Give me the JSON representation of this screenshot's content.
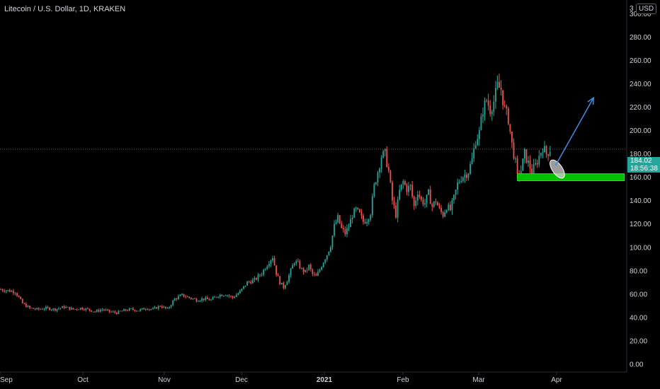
{
  "header": {
    "title": "Litecoin / U.S. Dollar, 1D, KRAKEN",
    "currency": "USD",
    "top_clip": "3"
  },
  "price_badge": {
    "price": "184.02",
    "countdown": "18:56:38"
  },
  "colors": {
    "up": "#26a69a",
    "down": "#ef5350",
    "background": "#000000",
    "zone": "#00c000",
    "arrow": "#3b8ee6"
  },
  "chart_data": {
    "type": "candlestick",
    "title": "Litecoin / U.S. Dollar, 1D, KRAKEN",
    "x_ticks": [
      "Sep",
      "Oct",
      "Nov",
      "Dec",
      "2021",
      "Feb",
      "Mar",
      "Apr"
    ],
    "y_ticks": [
      "0.00",
      "20.00",
      "40.00",
      "60.00",
      "80.00",
      "100.00",
      "120.00",
      "140.00",
      "160.00",
      "180.00",
      "200.00",
      "220.00",
      "240.00",
      "260.00",
      "280.00",
      "300.00"
    ],
    "ylim": [
      -5,
      318
    ],
    "last_price": 184.02,
    "close_series": [
      [
        0,
        64
      ],
      [
        8,
        62
      ],
      [
        12,
        52
      ],
      [
        16,
        48
      ],
      [
        20,
        47
      ],
      [
        25,
        48
      ],
      [
        30,
        47
      ],
      [
        35,
        49
      ],
      [
        40,
        47
      ],
      [
        44,
        48
      ],
      [
        48,
        47
      ],
      [
        52,
        45
      ],
      [
        56,
        47
      ],
      [
        60,
        45
      ],
      [
        64,
        44
      ],
      [
        68,
        46
      ],
      [
        72,
        47
      ],
      [
        76,
        46
      ],
      [
        80,
        48
      ],
      [
        84,
        47
      ],
      [
        88,
        50
      ],
      [
        92,
        47
      ],
      [
        96,
        56
      ],
      [
        100,
        59
      ],
      [
        104,
        57
      ],
      [
        108,
        55
      ],
      [
        112,
        56
      ],
      [
        116,
        55
      ],
      [
        120,
        59
      ],
      [
        124,
        60
      ],
      [
        128,
        57
      ],
      [
        132,
        62
      ],
      [
        136,
        70
      ],
      [
        140,
        72
      ],
      [
        144,
        78
      ],
      [
        148,
        88
      ],
      [
        150,
        92
      ],
      [
        152,
        78
      ],
      [
        154,
        70
      ],
      [
        156,
        66
      ],
      [
        158,
        72
      ],
      [
        160,
        80
      ],
      [
        162,
        88
      ],
      [
        164,
        86
      ],
      [
        166,
        81
      ],
      [
        168,
        79
      ],
      [
        170,
        84
      ],
      [
        172,
        77
      ],
      [
        174,
        75
      ],
      [
        176,
        81
      ],
      [
        178,
        88
      ],
      [
        180,
        94
      ],
      [
        182,
        102
      ],
      [
        184,
        118
      ],
      [
        186,
        125
      ],
      [
        188,
        116
      ],
      [
        190,
        112
      ],
      [
        192,
        118
      ],
      [
        194,
        128
      ],
      [
        196,
        132
      ],
      [
        198,
        128
      ],
      [
        200,
        122
      ],
      [
        202,
        124
      ],
      [
        204,
        130
      ],
      [
        206,
        152
      ],
      [
        208,
        165
      ],
      [
        210,
        178
      ],
      [
        212,
        180
      ],
      [
        214,
        165
      ],
      [
        216,
        140
      ],
      [
        218,
        128
      ],
      [
        220,
        148
      ],
      [
        222,
        156
      ],
      [
        224,
        150
      ],
      [
        226,
        152
      ],
      [
        228,
        135
      ],
      [
        230,
        148
      ],
      [
        232,
        140
      ],
      [
        234,
        138
      ],
      [
        236,
        146
      ],
      [
        238,
        135
      ],
      [
        240,
        140
      ],
      [
        242,
        132
      ],
      [
        244,
        128
      ],
      [
        246,
        135
      ],
      [
        248,
        132
      ],
      [
        250,
        142
      ],
      [
        252,
        154
      ],
      [
        254,
        160
      ],
      [
        256,
        162
      ],
      [
        258,
        165
      ],
      [
        260,
        175
      ],
      [
        262,
        192
      ],
      [
        264,
        198
      ],
      [
        266,
        218
      ],
      [
        268,
        226
      ],
      [
        270,
        218
      ],
      [
        272,
        225
      ],
      [
        274,
        238
      ],
      [
        276,
        235
      ],
      [
        278,
        218
      ],
      [
        280,
        210
      ],
      [
        282,
        188
      ],
      [
        284,
        172
      ],
      [
        285,
        160
      ],
      [
        287,
        166
      ],
      [
        289,
        180
      ],
      [
        291,
        172
      ],
      [
        293,
        165
      ],
      [
        295,
        170
      ],
      [
        297,
        178
      ],
      [
        299,
        186
      ],
      [
        301,
        180
      ],
      [
        303,
        184
      ]
    ],
    "annotations": [
      {
        "type": "support-zone",
        "ymin": 157,
        "ymax": 163,
        "x_start": 285,
        "x_end": 344
      },
      {
        "type": "ellipse",
        "x": 307,
        "y": 167
      },
      {
        "type": "arrow",
        "x1": 306,
        "y1": 170,
        "x2": 327,
        "y2": 228
      }
    ]
  }
}
